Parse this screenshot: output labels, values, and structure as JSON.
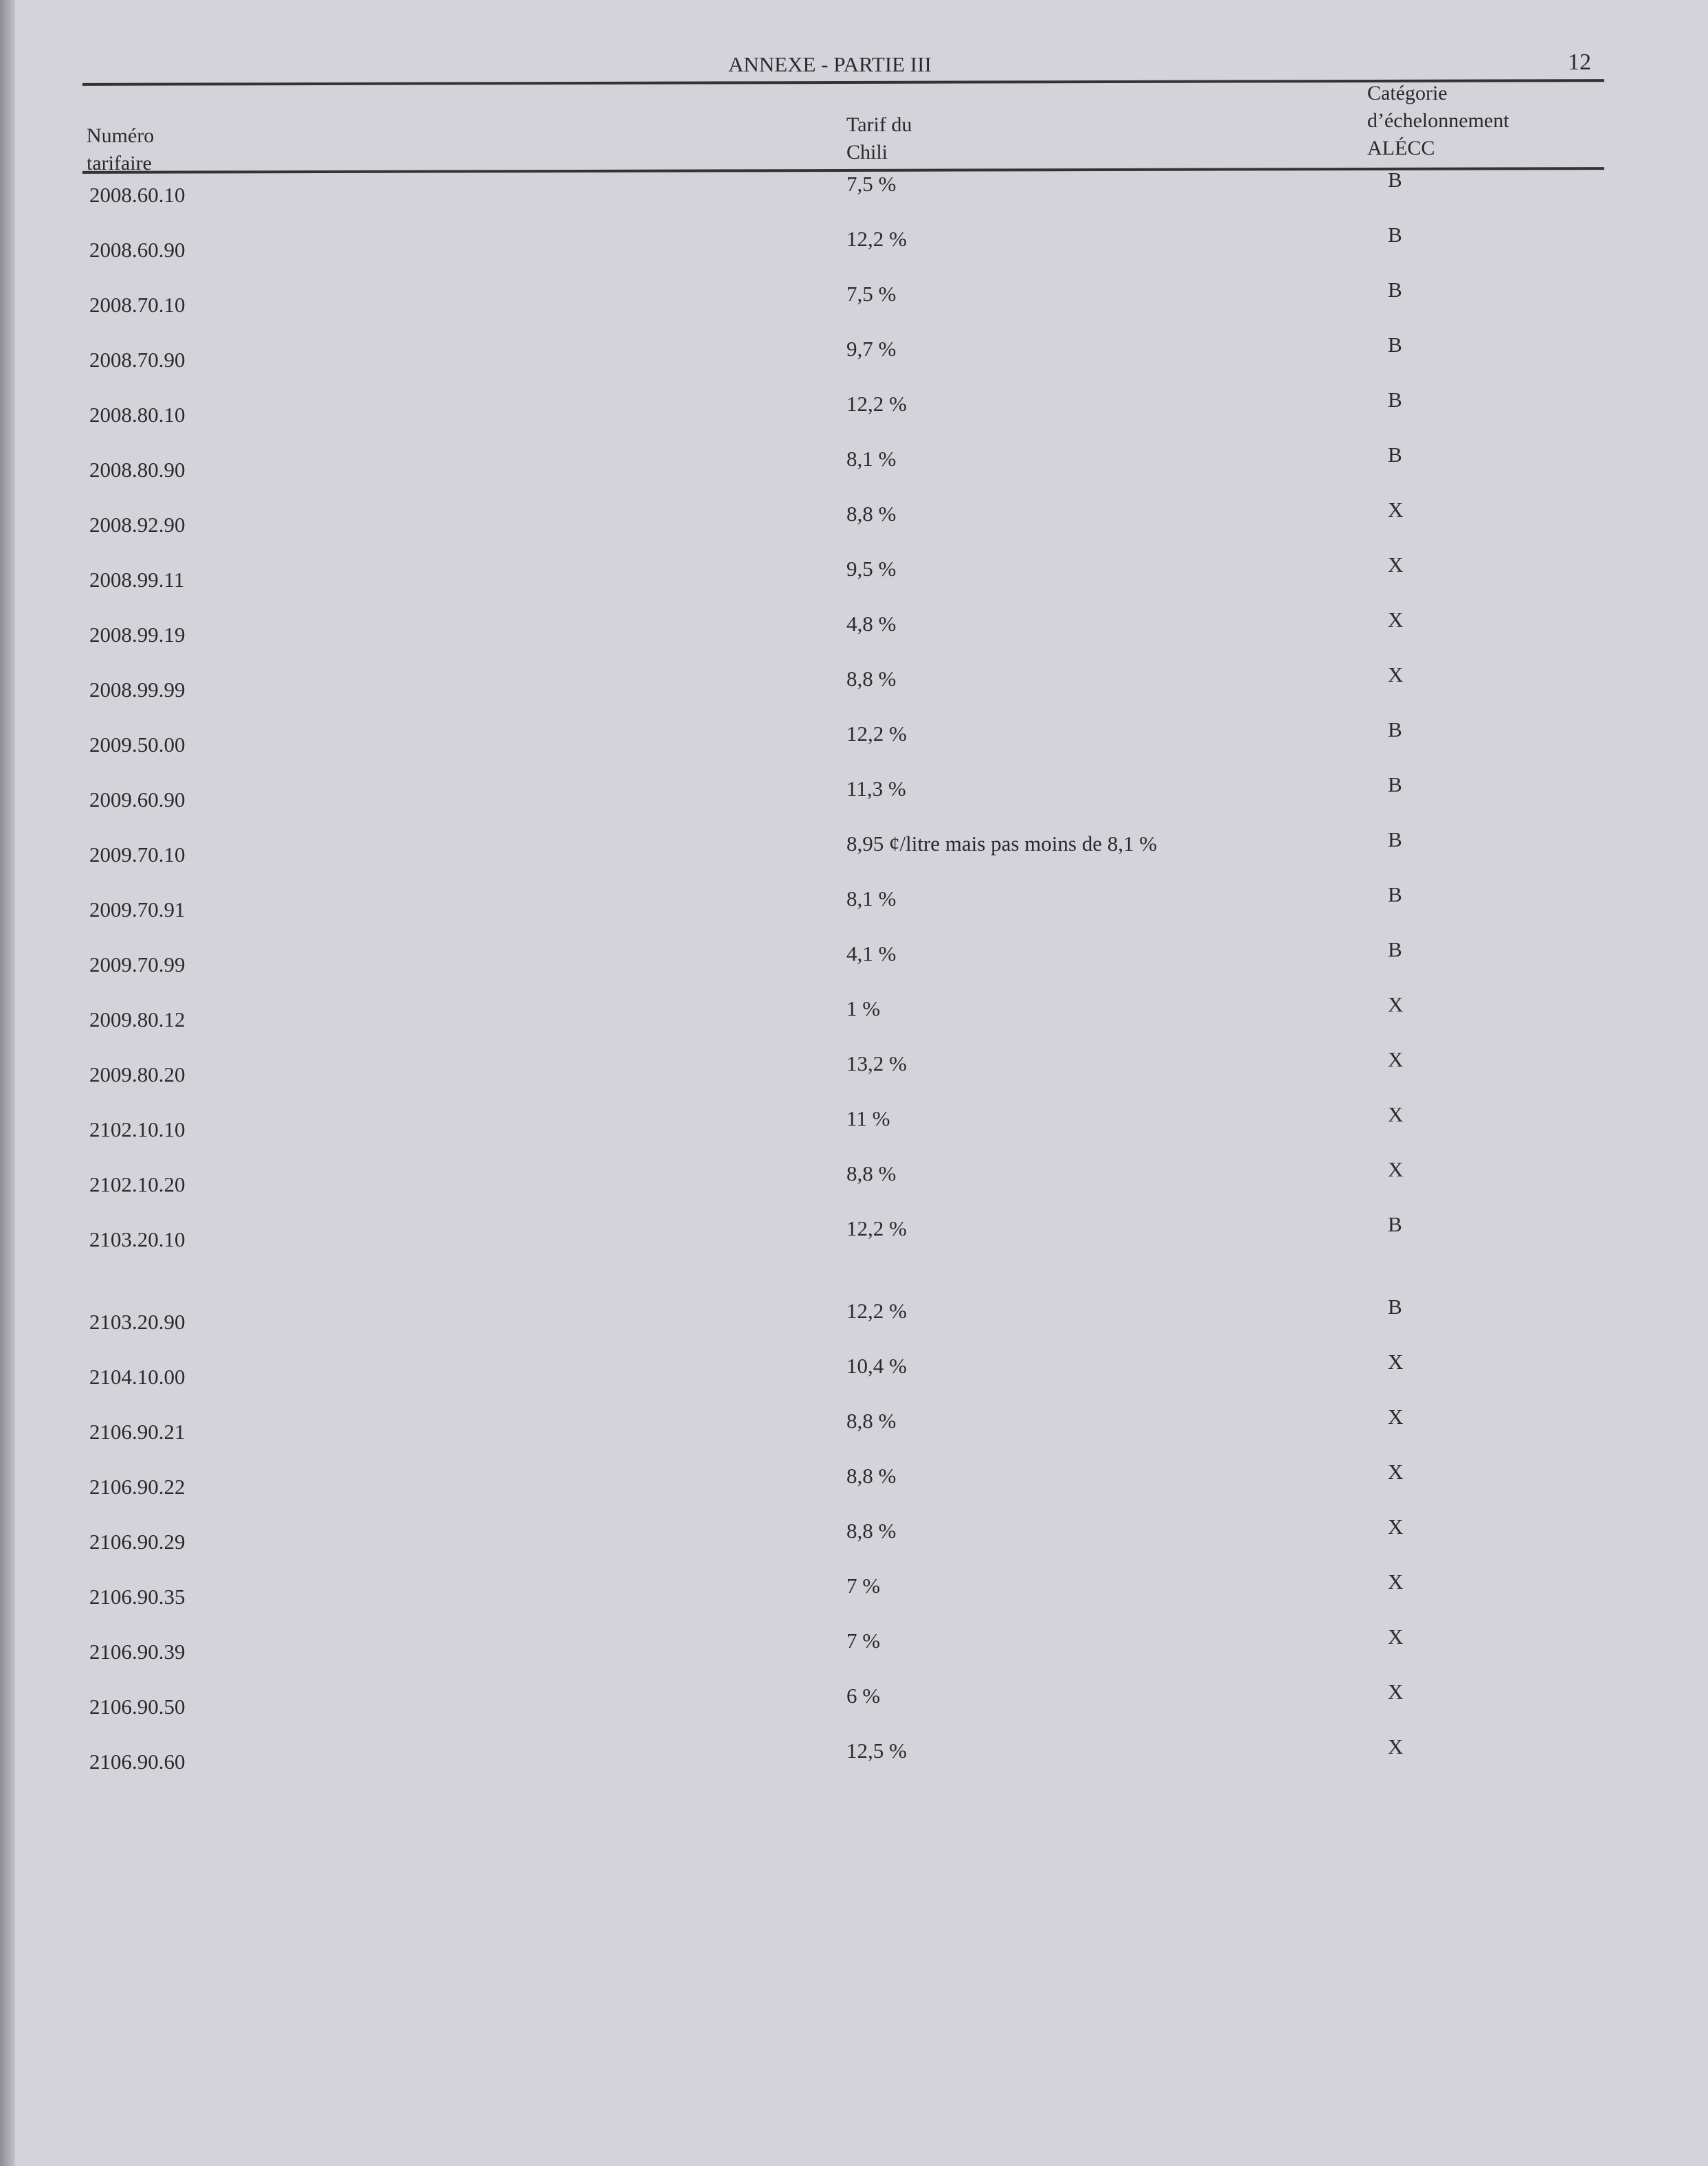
{
  "header": {
    "title": "ANNEXE - PARTIE III",
    "page_number": "12"
  },
  "columns": {
    "code": [
      "Numéro",
      "tarifaire"
    ],
    "rate": [
      "Tarif du",
      "Chili"
    ],
    "category": [
      "Catégorie",
      "d’échelonnement",
      "ALÉCC"
    ]
  },
  "rows": [
    [
      "2008.60.10",
      "7,5 %",
      "B"
    ],
    [
      "2008.60.90",
      "12,2 %",
      "B"
    ],
    [
      "2008.70.10",
      "7,5 %",
      "B"
    ],
    [
      "2008.70.90",
      "9,7 %",
      "B"
    ],
    [
      "2008.80.10",
      "12,2 %",
      "B"
    ],
    [
      "2008.80.90",
      "8,1 %",
      "B"
    ],
    [
      "2008.92.90",
      "8,8 %",
      "X"
    ],
    [
      "2008.99.11",
      "9,5 %",
      "X"
    ],
    [
      "2008.99.19",
      "4,8 %",
      "X"
    ],
    [
      "2008.99.99",
      "8,8 %",
      "X"
    ],
    [
      "2009.50.00",
      "12,2 %",
      "B"
    ],
    [
      "2009.60.90",
      "11,3 %",
      "B"
    ],
    [
      "2009.70.10",
      "8,95 ¢/litre mais pas moins de 8,1 %",
      "B"
    ],
    [
      "2009.70.91",
      "8,1 %",
      "B"
    ],
    [
      "2009.70.99",
      "4,1 %",
      "B"
    ],
    [
      "2009.80.12",
      "1 %",
      "X"
    ],
    [
      "2009.80.20",
      "13,2 %",
      "X"
    ],
    [
      "2102.10.10",
      "11 %",
      "X"
    ],
    [
      "2102.10.20",
      "8,8 %",
      "X"
    ],
    [
      "2103.20.10",
      "12,2 %",
      "B"
    ],
    [
      "2103.20.90",
      "12,2 %",
      "B"
    ],
    [
      "2104.10.00",
      "10,4 %",
      "X"
    ],
    [
      "2106.90.21",
      "8,8 %",
      "X"
    ],
    [
      "2106.90.22",
      "8,8 %",
      "X"
    ],
    [
      "2106.90.29",
      "8,8 %",
      "X"
    ],
    [
      "2106.90.35",
      "7 %",
      "X"
    ],
    [
      "2106.90.39",
      "7 %",
      "X"
    ],
    [
      "2106.90.50",
      "6 %",
      "X"
    ],
    [
      "2106.90.60",
      "12,5 %",
      "X"
    ]
  ]
}
